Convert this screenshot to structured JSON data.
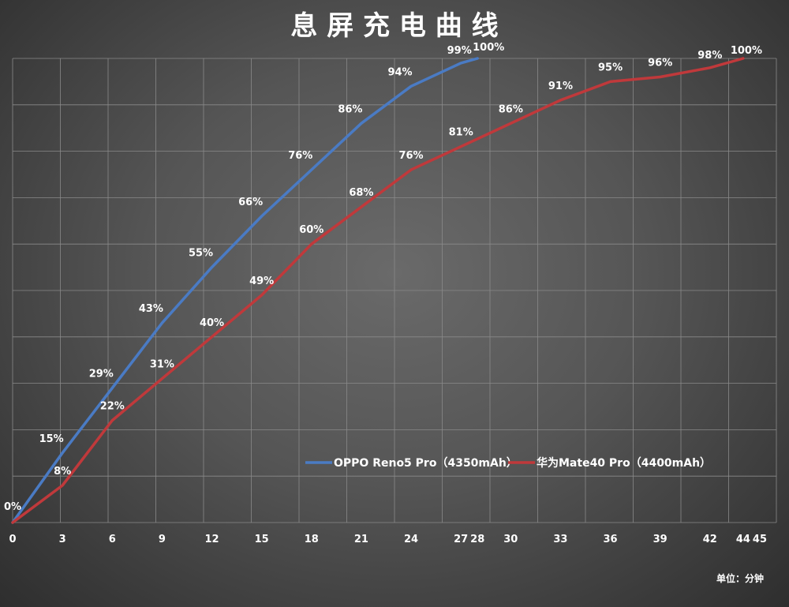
{
  "chart_data": {
    "type": "line",
    "title": "息 屏 充 电 曲 线",
    "xlabel": "",
    "ylabel": "",
    "unit_note": "单位：分钟",
    "xlim": [
      0,
      46
    ],
    "ylim": [
      0,
      100
    ],
    "x_ticks": [
      0,
      3,
      6,
      9,
      12,
      15,
      18,
      21,
      24,
      27,
      28,
      30,
      33,
      36,
      39,
      42,
      44,
      45
    ],
    "grid": true,
    "legend_position": "bottom-right",
    "series": [
      {
        "name": "OPPO Reno5 Pro（4350mAh）",
        "color": "#4a7bc4",
        "x": [
          0,
          3,
          6,
          9,
          12,
          15,
          18,
          21,
          24,
          27,
          28
        ],
        "y": [
          0,
          15,
          29,
          43,
          55,
          66,
          76,
          86,
          94,
          99,
          100
        ],
        "labels": [
          "0%",
          "15%",
          "29%",
          "43%",
          "55%",
          "66%",
          "76%",
          "86%",
          "94%",
          "99%",
          "100%"
        ]
      },
      {
        "name": "华为Mate40 Pro（4400mAh）",
        "color": "#c0393b",
        "x": [
          0,
          3,
          6,
          9,
          12,
          15,
          18,
          21,
          24,
          27,
          30,
          33,
          36,
          39,
          42,
          44
        ],
        "y": [
          0,
          8,
          22,
          31,
          40,
          49,
          60,
          68,
          76,
          81,
          86,
          91,
          95,
          96,
          98,
          100
        ],
        "labels": [
          "",
          "8%",
          "22%",
          "31%",
          "40%",
          "49%",
          "60%",
          "68%",
          "76%",
          "81%",
          "86%",
          "91%",
          "95%",
          "96%",
          "98%",
          "100%"
        ]
      }
    ]
  }
}
